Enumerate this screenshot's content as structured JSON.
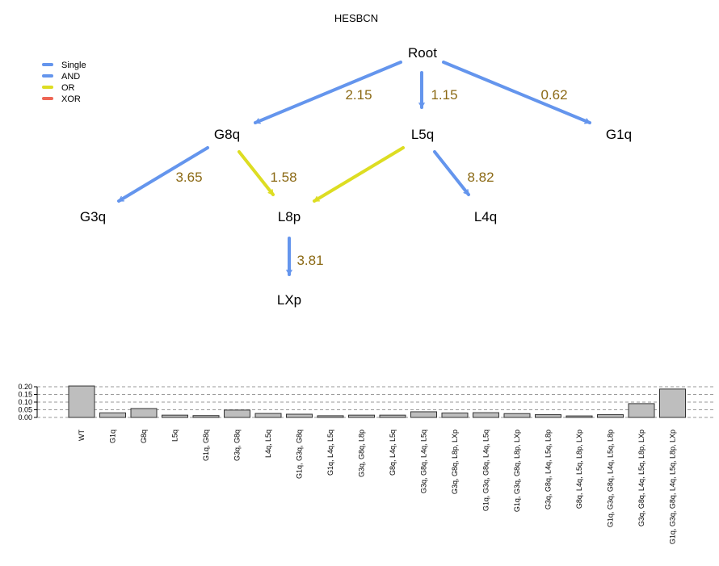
{
  "title": "HESBCN",
  "legend": {
    "placement": "top-left",
    "items": [
      {
        "label": "Single",
        "color": "#6495ed"
      },
      {
        "label": "AND",
        "color": "#6495ed"
      },
      {
        "label": "OR",
        "color": "#dddd22"
      },
      {
        "label": "XOR",
        "color": "#ee6655"
      }
    ]
  },
  "dag": {
    "nodes": [
      "Root",
      "G8q",
      "L5q",
      "G1q",
      "G3q",
      "L8p",
      "L4q",
      "LXp"
    ],
    "edges": [
      {
        "from": "Root",
        "to": "G8q",
        "label": "2.15",
        "relation": "Single"
      },
      {
        "from": "Root",
        "to": "L5q",
        "label": "1.15",
        "relation": "Single"
      },
      {
        "from": "Root",
        "to": "G1q",
        "label": "0.62",
        "relation": "Single"
      },
      {
        "from": "G8q",
        "to": "G3q",
        "label": "3.65",
        "relation": "Single"
      },
      {
        "from": "G8q",
        "to": "L8p",
        "label": "1.58",
        "relation": "OR"
      },
      {
        "from": "L5q",
        "to": "L8p",
        "label": "",
        "relation": "OR"
      },
      {
        "from": "L5q",
        "to": "L4q",
        "label": "8.82",
        "relation": "Single"
      },
      {
        "from": "L8p",
        "to": "LXp",
        "label": "3.81",
        "relation": "Single"
      }
    ]
  },
  "chart_data": {
    "type": "bar",
    "ylim": [
      0,
      0.2
    ],
    "yticks": [
      "0.20",
      "0.15",
      "0.10",
      "0.05",
      "0.00"
    ],
    "grid": "horizontal dashed",
    "bar_color": "#bebebe",
    "categories": [
      "WT",
      "G1q",
      "G8q",
      "L5q",
      "G1q, G8q",
      "G3q, G8q",
      "L4q, L5q",
      "G1q, G3q, G8q",
      "G1q, L4q, L5q",
      "G3q, G8q, L8p",
      "G8q, L4q, L5q",
      "G3q, G8q, L4q, L5q",
      "G3q, G8q, L8p, LXp",
      "G1q, G3q, G8q, L4q, L5q",
      "G1q, G3q, G8q, L8p, LXp",
      "G3q, G8q, L4q, L5q, L8p",
      "G8q, L4q, L5q, L8p, LXp",
      "G1q, G3q, G8q, L4q, L5q, L8p",
      "G3q, G8q, L4q, L5q, L8p, LXp",
      "G1q, G3q, G8q, L4q, L5q, L8p, LXp"
    ],
    "values": [
      0.205,
      0.03,
      0.058,
      0.015,
      0.012,
      0.048,
      0.026,
      0.021,
      0.011,
      0.015,
      0.015,
      0.037,
      0.029,
      0.031,
      0.025,
      0.018,
      0.01,
      0.018,
      0.09,
      0.185
    ]
  }
}
